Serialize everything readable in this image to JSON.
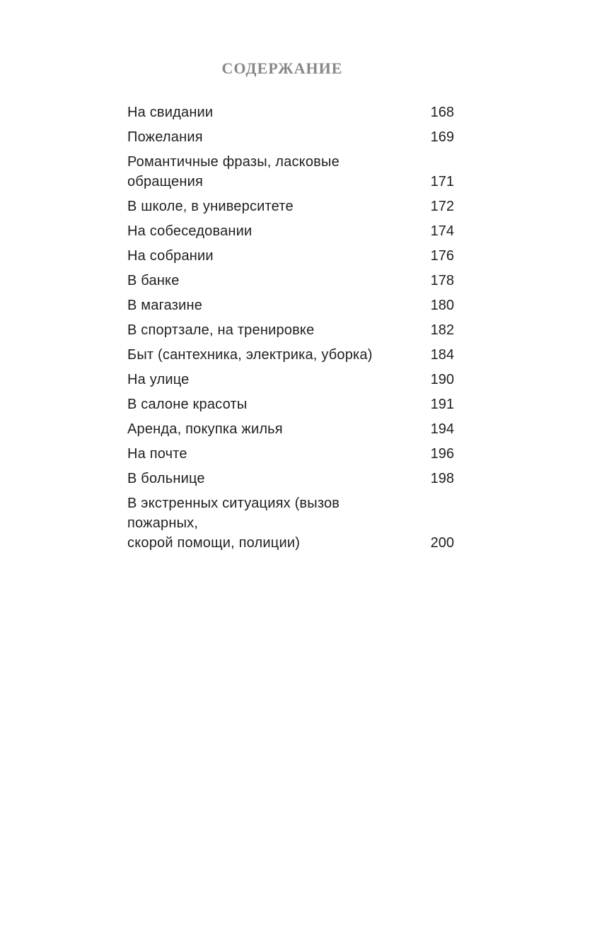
{
  "page": {
    "title": "СОДЕРЖАНИЕ",
    "toc": {
      "entries": [
        {
          "title": "На свидании",
          "page": "168"
        },
        {
          "title": "Пожелания",
          "page": "169"
        },
        {
          "title": "Романтичные фразы, ласковые\nобращения",
          "page": "171"
        },
        {
          "title": "В школе, в университете",
          "page": "172"
        },
        {
          "title": "На собеседовании",
          "page": "174"
        },
        {
          "title": "На собрании",
          "page": "176"
        },
        {
          "title": "В банке",
          "page": "178"
        },
        {
          "title": "В магазине",
          "page": "180"
        },
        {
          "title": "В спортзале, на тренировке",
          "page": "182"
        },
        {
          "title": "Быт (сантехника, электрика, уборка)",
          "page": "184"
        },
        {
          "title": "На улице",
          "page": "190"
        },
        {
          "title": "В салоне красоты",
          "page": "191"
        },
        {
          "title": "Аренда, покупка жилья",
          "page": "194"
        },
        {
          "title": "На почте",
          "page": "196"
        },
        {
          "title": "В больнице",
          "page": "198"
        },
        {
          "title": "В экстренных ситуациях (вызов пожарных,\nскорой помощи, полиции)",
          "page": "200"
        }
      ]
    }
  },
  "colors": {
    "background": "#ffffff",
    "body_text": "#1f1f1f",
    "title_text": "#878787"
  }
}
